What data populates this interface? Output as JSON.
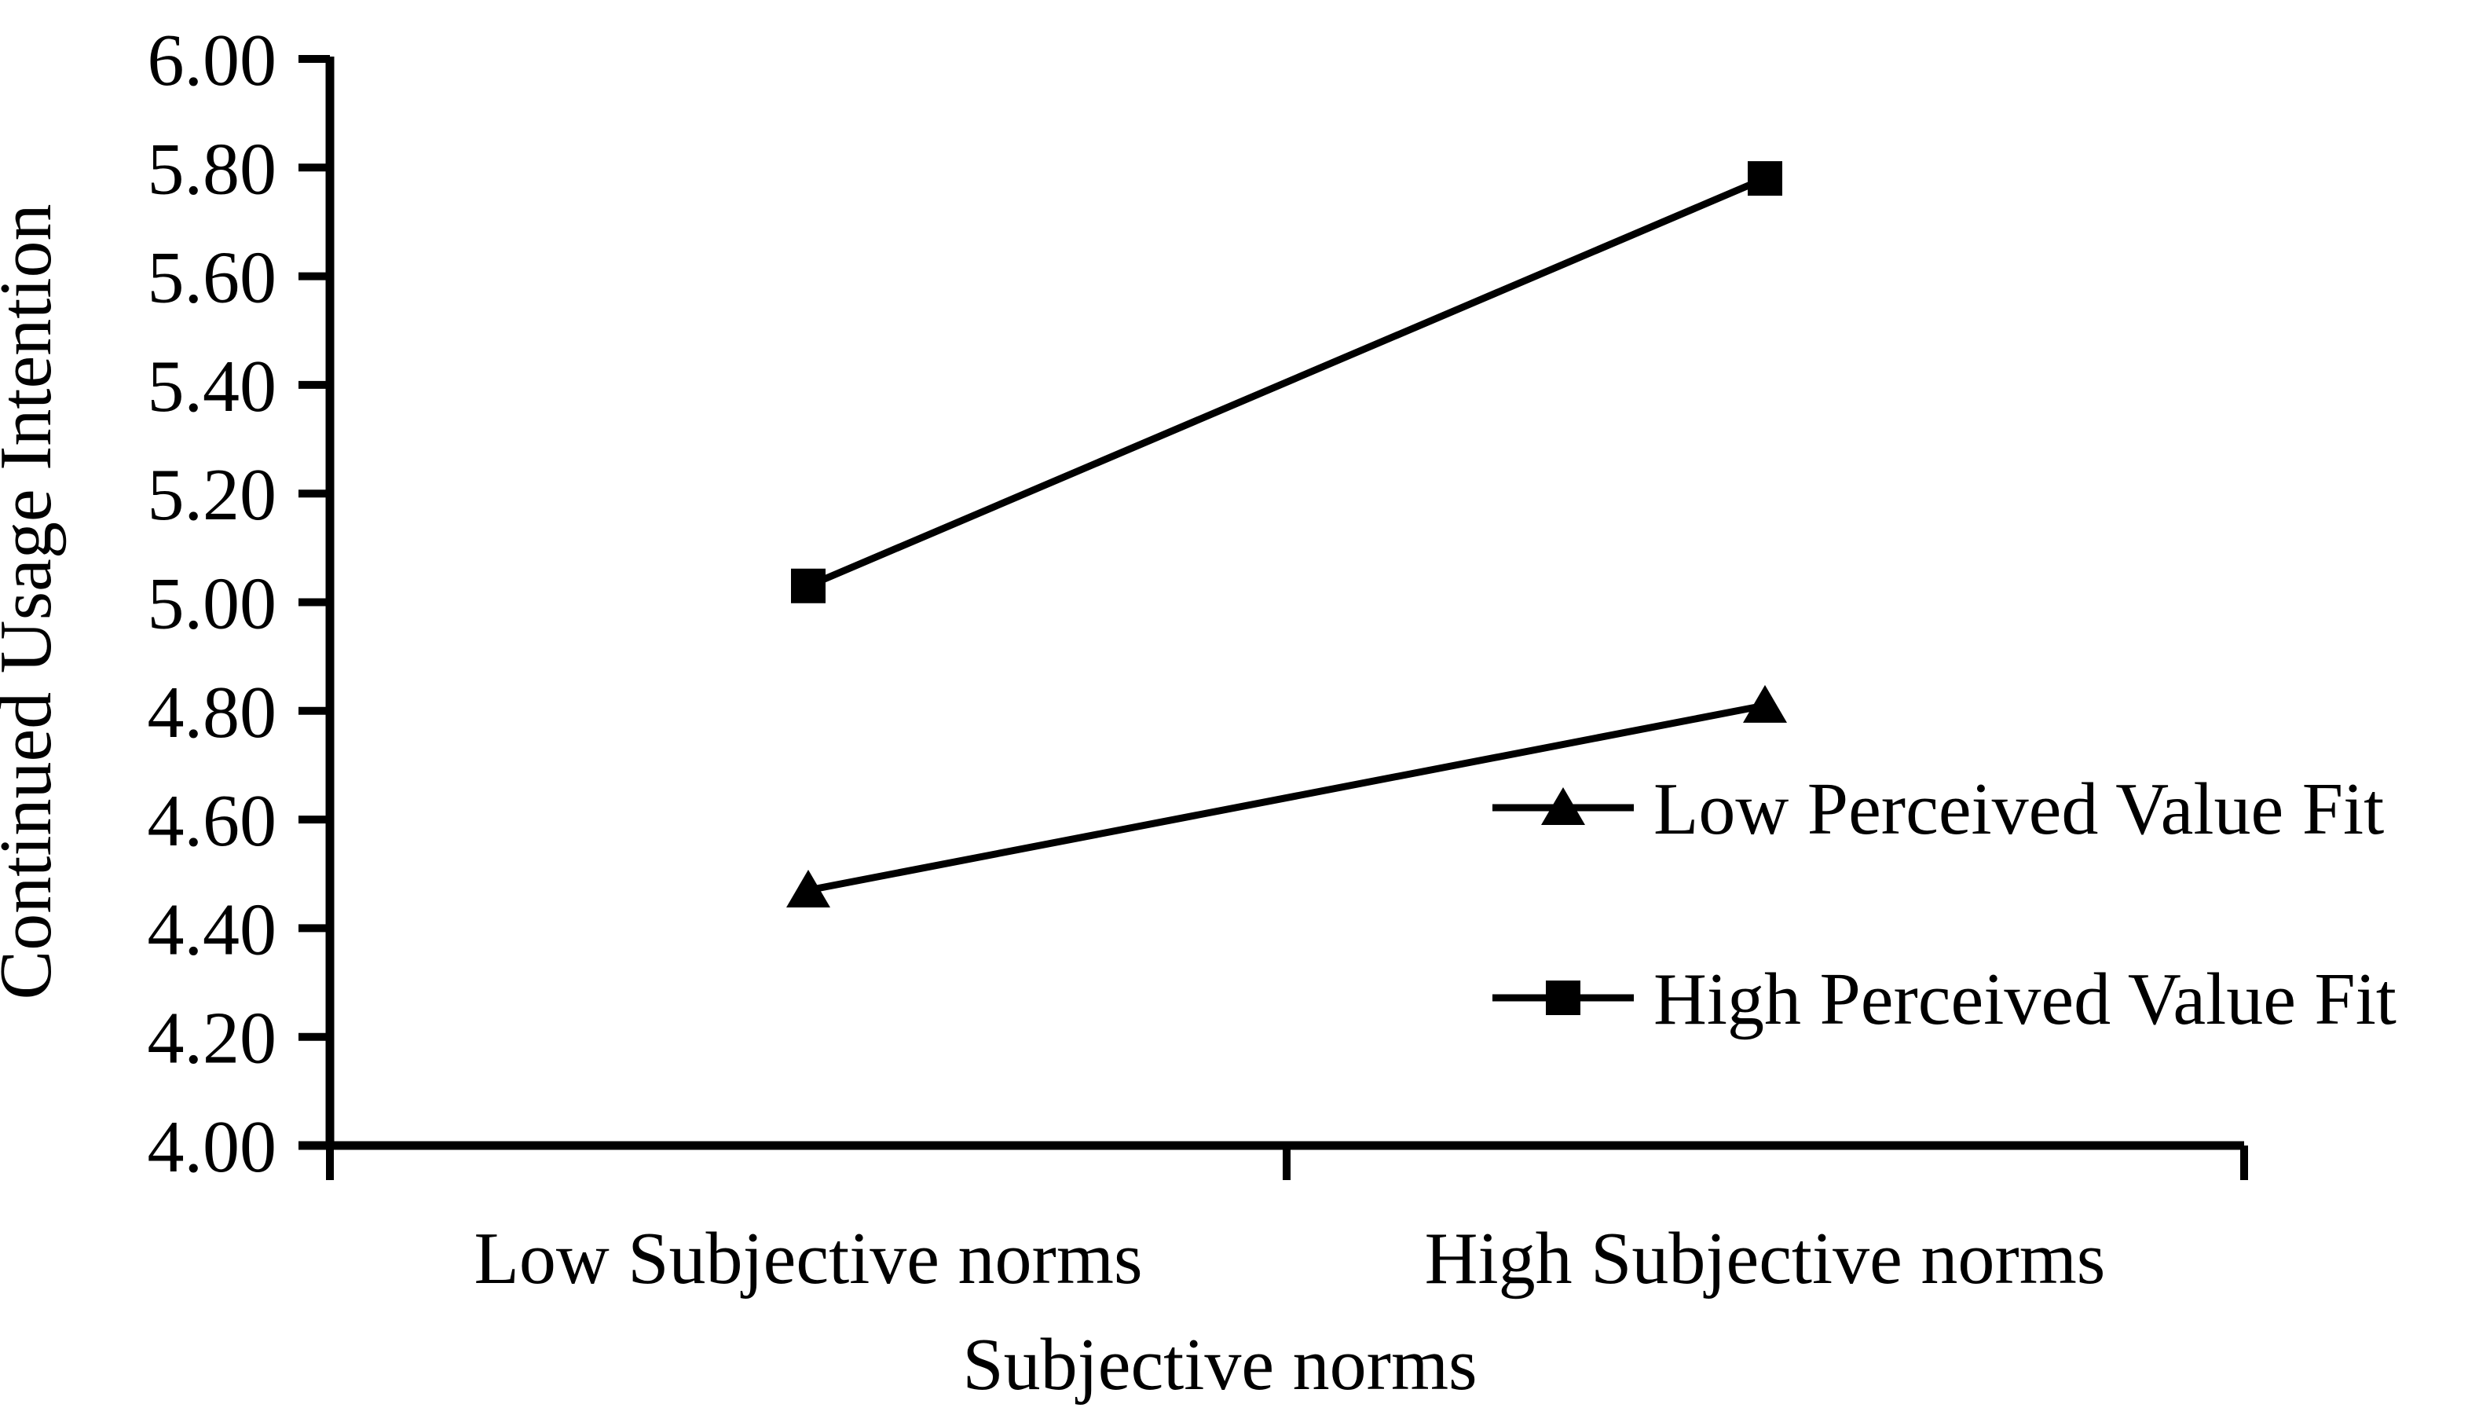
{
  "figure": {
    "background": "#ffffff",
    "ink_color": "#000000"
  },
  "chart_data": {
    "type": "line",
    "title": "",
    "xlabel": "Subjective norms",
    "ylabel": "Continued Usage Intention",
    "categories": [
      "Low Subjective norms",
      "High Subjective norms"
    ],
    "series": [
      {
        "name": "Low Perceived Value Fit",
        "marker": "triangle",
        "values": [
          4.47,
          4.81
        ]
      },
      {
        "name": "High Perceived Value Fit",
        "marker": "square",
        "values": [
          5.03,
          5.78
        ]
      }
    ],
    "y_axis": {
      "min": 4.0,
      "max": 6.0,
      "step": 0.2,
      "tick_labels": [
        "4.00",
        "4.20",
        "4.40",
        "4.60",
        "4.80",
        "5.00",
        "5.20",
        "5.40",
        "5.60",
        "5.80",
        "6.00"
      ]
    },
    "x_axis": {
      "tick_count": 3
    },
    "legend": {
      "position": "right-middle",
      "entries": [
        "Low Perceived Value Fit",
        "High Perceived Value Fit"
      ]
    },
    "grid": false,
    "line_color": "#000000",
    "marker_color": "#000000"
  }
}
